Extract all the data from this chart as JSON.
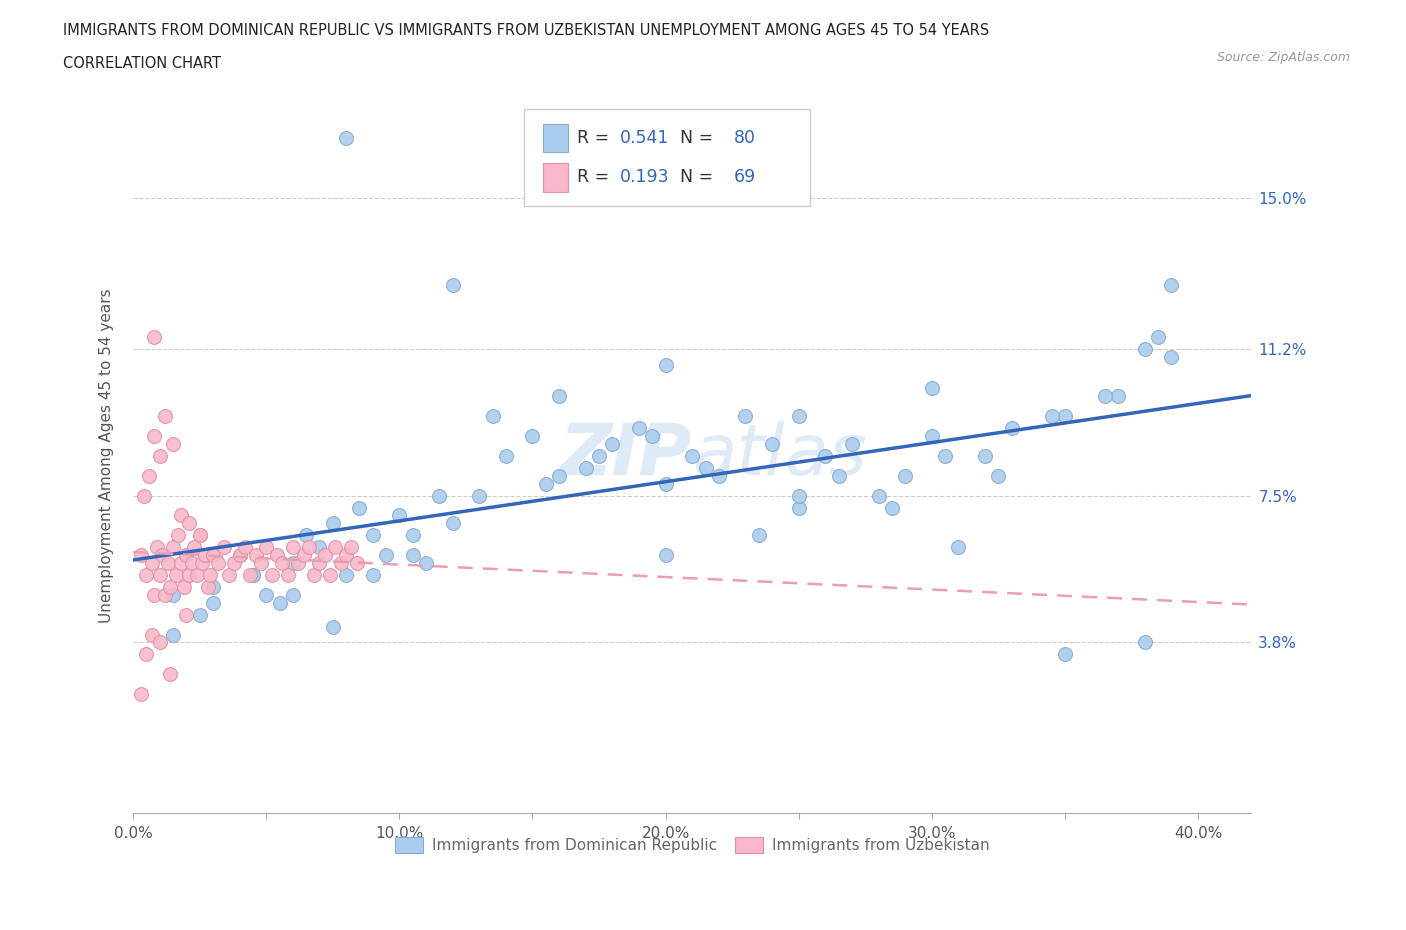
{
  "title_line1": "IMMIGRANTS FROM DOMINICAN REPUBLIC VS IMMIGRANTS FROM UZBEKISTAN UNEMPLOYMENT AMONG AGES 45 TO 54 YEARS",
  "title_line2": "CORRELATION CHART",
  "source": "Source: ZipAtlas.com",
  "ylabel": "Unemployment Among Ages 45 to 54 years",
  "xlim": [
    0.0,
    0.42
  ],
  "ylim": [
    -0.005,
    0.175
  ],
  "xtick_labels": [
    "0.0%",
    "",
    "10.0%",
    "",
    "20.0%",
    "",
    "30.0%",
    "",
    "40.0%"
  ],
  "xtick_values": [
    0.0,
    0.05,
    0.1,
    0.15,
    0.2,
    0.25,
    0.3,
    0.35,
    0.4
  ],
  "ytick_labels_right": [
    "3.8%",
    "7.5%",
    "11.2%",
    "15.0%"
  ],
  "ytick_values_right": [
    0.038,
    0.075,
    0.112,
    0.15
  ],
  "blue_color": "#aaccee",
  "blue_edge": "#88aacc",
  "pink_color": "#f8b8c8",
  "pink_edge": "#e090a8",
  "blue_R": 0.541,
  "blue_N": 80,
  "pink_R": 0.193,
  "pink_N": 69,
  "trend_blue_color": "#3366bb",
  "trend_pink_color": "#e8a0b0",
  "watermark_zip": "ZIP",
  "watermark_atlas": "atlas",
  "legend_color": "#3366bb"
}
